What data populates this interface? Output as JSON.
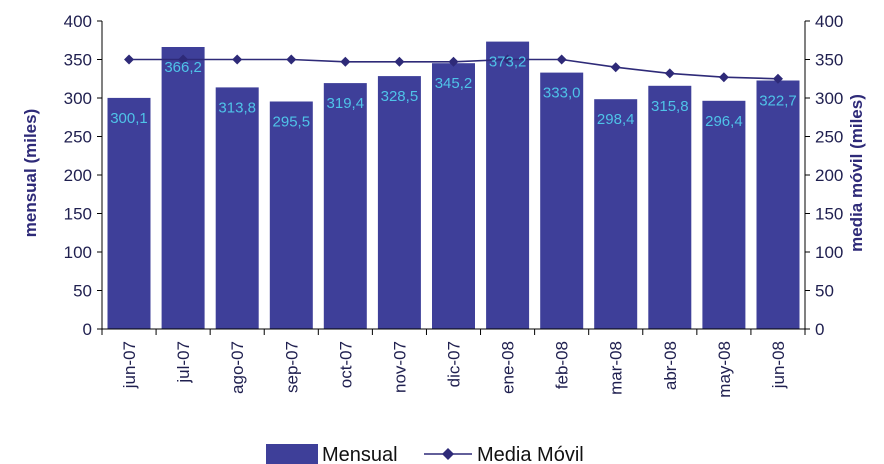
{
  "chart_data": {
    "type": "bar",
    "categories": [
      "jun-07",
      "jul-07",
      "ago-07",
      "sep-07",
      "oct-07",
      "nov-07",
      "dic-07",
      "ene-08",
      "feb-08",
      "mar-08",
      "abr-08",
      "may-08",
      "jun-08"
    ],
    "series": [
      {
        "name": "Mensual",
        "type": "bar",
        "axis": "left",
        "color": "#3e3f99",
        "values": [
          300.1,
          366.2,
          313.8,
          295.5,
          319.4,
          328.5,
          345.2,
          373.2,
          333.0,
          298.4,
          315.8,
          296.4,
          322.7
        ],
        "labels": [
          "300,1",
          "366,2",
          "313,8",
          "295,5",
          "319,4",
          "328,5",
          "345,2",
          "373,2",
          "333,0",
          "298,4",
          "315,8",
          "296,4",
          "322,7"
        ]
      },
      {
        "name": "Media Móvil",
        "type": "line",
        "axis": "right",
        "color": "#2e2a78",
        "values": [
          350,
          350,
          350,
          350,
          347,
          347,
          347,
          350,
          350,
          340,
          332,
          327,
          325
        ]
      }
    ],
    "ylabel_left": "mensual (miles)",
    "ylabel_right": "media móvil (miles)",
    "ylim": [
      0,
      400
    ],
    "yticks": [
      "0",
      "50",
      "100",
      "150",
      "200",
      "250",
      "300",
      "350",
      "400"
    ],
    "grid": false,
    "legend": "bottom",
    "label_color": "#4fc3e8"
  }
}
